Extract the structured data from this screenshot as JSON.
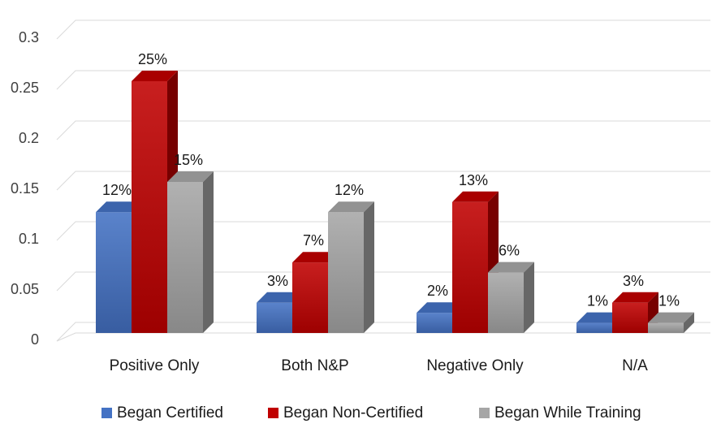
{
  "chart_data": {
    "type": "bar",
    "style": "3d-clustered-column",
    "categories": [
      "Positive Only",
      "Both N&P",
      "Negative Only",
      "N/A"
    ],
    "series": [
      {
        "name": "Began Certified",
        "color": "#4472c4",
        "values": [
          0.12,
          0.03,
          0.02,
          0.01
        ],
        "labels": [
          "12%",
          "3%",
          "2%",
          "1%"
        ]
      },
      {
        "name": "Began Non-Certified",
        "color": "#c00000",
        "values": [
          0.25,
          0.07,
          0.13,
          0.03
        ],
        "labels": [
          "25%",
          "7%",
          "13%",
          "3%"
        ]
      },
      {
        "name": "Began While Training",
        "color": "#a6a6a6",
        "values": [
          0.15,
          0.12,
          0.06,
          0.01
        ],
        "labels": [
          "15%",
          "12%",
          "6%",
          "1%"
        ]
      }
    ],
    "yaxis": {
      "min": 0,
      "max": 0.3,
      "ticks": [
        "0",
        "0.05",
        "0.1",
        "0.15",
        "0.2",
        "0.25",
        "0.3"
      ]
    },
    "title": "",
    "xlabel": "",
    "ylabel": "",
    "grid": true,
    "legend_position": "bottom"
  }
}
